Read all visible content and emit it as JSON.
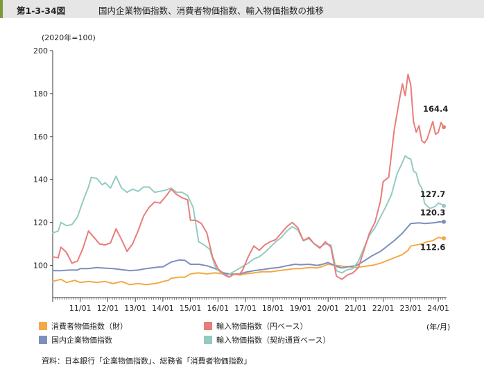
{
  "header": {
    "figure_number": "第1-3-34図",
    "title": "国内企業物価指数、消費者物価指数、輸入物価指数の推移"
  },
  "unit_label": "(2020年=100)",
  "x_unit_label": "(年/月)",
  "source": "資料：日本銀行「企業物価指数」、総務省「消費者物価指数」",
  "colors": {
    "cpi": "#f4a947",
    "import_yen": "#e87d7a",
    "cgpi": "#7c8fbd",
    "import_contract": "#93cbc1"
  },
  "chart_data": {
    "type": "line",
    "title": "国内企業物価指数、消費者物価指数、輸入物価指数の推移",
    "xlabel": "(年/月)",
    "ylabel": "(2020年=100)",
    "ylim": [
      85,
      200
    ],
    "yticks": [
      100,
      120,
      140,
      160,
      180,
      200
    ],
    "xlim": [
      2010.0,
      2024.3
    ],
    "xticks": [
      {
        "label": "11/01",
        "x": 2011.0
      },
      {
        "label": "12/01",
        "x": 2012.0
      },
      {
        "label": "13/01",
        "x": 2013.0
      },
      {
        "label": "14/01",
        "x": 2014.0
      },
      {
        "label": "15/01",
        "x": 2015.0
      },
      {
        "label": "16/01",
        "x": 2016.0
      },
      {
        "label": "17/01",
        "x": 2017.0
      },
      {
        "label": "18/01",
        "x": 2018.0
      },
      {
        "label": "19/01",
        "x": 2019.0
      },
      {
        "label": "20/01",
        "x": 2020.0
      },
      {
        "label": "21/01",
        "x": 2021.0
      },
      {
        "label": "22/01",
        "x": 2022.0
      },
      {
        "label": "23/01",
        "x": 2023.0
      },
      {
        "label": "24/01",
        "x": 2024.0
      }
    ],
    "legend_position": "bottom",
    "grid": false,
    "series": [
      {
        "key": "cpi",
        "name": "消費者物価指数（財）",
        "end_label": "112.6",
        "points": [
          [
            2010.0,
            92.5
          ],
          [
            2010.3,
            93.5
          ],
          [
            2010.5,
            92.0
          ],
          [
            2010.8,
            93.0
          ],
          [
            2011.0,
            92.0
          ],
          [
            2011.3,
            92.5
          ],
          [
            2011.6,
            92.0
          ],
          [
            2011.9,
            92.5
          ],
          [
            2012.2,
            91.5
          ],
          [
            2012.5,
            92.5
          ],
          [
            2012.8,
            91.0
          ],
          [
            2013.1,
            91.5
          ],
          [
            2013.4,
            91.0
          ],
          [
            2013.7,
            91.5
          ],
          [
            2013.9,
            92.0
          ],
          [
            2014.0,
            92.5
          ],
          [
            2014.2,
            93.0
          ],
          [
            2014.3,
            94.0
          ],
          [
            2014.6,
            94.5
          ],
          [
            2014.8,
            94.5
          ],
          [
            2015.0,
            96.0
          ],
          [
            2015.3,
            96.5
          ],
          [
            2015.6,
            96.0
          ],
          [
            2015.9,
            96.5
          ],
          [
            2016.2,
            96.0
          ],
          [
            2016.5,
            96.0
          ],
          [
            2016.8,
            95.5
          ],
          [
            2017.0,
            96.0
          ],
          [
            2017.3,
            96.5
          ],
          [
            2017.6,
            97.0
          ],
          [
            2017.9,
            97.0
          ],
          [
            2018.2,
            97.5
          ],
          [
            2018.5,
            98.0
          ],
          [
            2018.8,
            98.5
          ],
          [
            2019.0,
            98.5
          ],
          [
            2019.3,
            99.0
          ],
          [
            2019.6,
            98.8
          ],
          [
            2019.8,
            99.5
          ],
          [
            2020.0,
            100.5
          ],
          [
            2020.3,
            100.0
          ],
          [
            2020.6,
            99.5
          ],
          [
            2020.8,
            99.3
          ],
          [
            2021.0,
            99.0
          ],
          [
            2021.3,
            99.5
          ],
          [
            2021.6,
            100.0
          ],
          [
            2021.9,
            101.0
          ],
          [
            2022.1,
            102.0
          ],
          [
            2022.4,
            103.5
          ],
          [
            2022.7,
            105.0
          ],
          [
            2022.9,
            107.0
          ],
          [
            2023.0,
            109.0
          ],
          [
            2023.2,
            109.5
          ],
          [
            2023.4,
            110.0
          ],
          [
            2023.6,
            111.0
          ],
          [
            2023.8,
            111.5
          ],
          [
            2024.0,
            113.0
          ],
          [
            2024.2,
            112.6
          ]
        ]
      },
      {
        "key": "cgpi",
        "name": "国内企業物価指数",
        "end_label": "120.3",
        "points": [
          [
            2010.0,
            97.5
          ],
          [
            2010.3,
            97.5
          ],
          [
            2010.6,
            97.8
          ],
          [
            2010.9,
            97.8
          ],
          [
            2011.0,
            98.5
          ],
          [
            2011.3,
            98.5
          ],
          [
            2011.6,
            99.0
          ],
          [
            2011.9,
            98.7
          ],
          [
            2012.2,
            98.5
          ],
          [
            2012.5,
            98.0
          ],
          [
            2012.8,
            97.5
          ],
          [
            2013.1,
            97.8
          ],
          [
            2013.4,
            98.5
          ],
          [
            2013.7,
            99.0
          ],
          [
            2013.9,
            99.3
          ],
          [
            2014.0,
            99.3
          ],
          [
            2014.3,
            101.5
          ],
          [
            2014.6,
            102.5
          ],
          [
            2014.8,
            102.3
          ],
          [
            2015.0,
            100.5
          ],
          [
            2015.3,
            100.5
          ],
          [
            2015.6,
            99.8
          ],
          [
            2015.9,
            98.5
          ],
          [
            2016.2,
            96.5
          ],
          [
            2016.5,
            95.8
          ],
          [
            2016.8,
            96.0
          ],
          [
            2017.0,
            96.8
          ],
          [
            2017.3,
            97.5
          ],
          [
            2017.6,
            98.0
          ],
          [
            2017.9,
            98.6
          ],
          [
            2018.2,
            99.0
          ],
          [
            2018.5,
            99.8
          ],
          [
            2018.8,
            100.5
          ],
          [
            2019.0,
            100.3
          ],
          [
            2019.3,
            100.5
          ],
          [
            2019.6,
            100.0
          ],
          [
            2019.8,
            100.5
          ],
          [
            2020.0,
            101.3
          ],
          [
            2020.3,
            99.5
          ],
          [
            2020.5,
            98.8
          ],
          [
            2020.8,
            99.5
          ],
          [
            2021.0,
            99.8
          ],
          [
            2021.3,
            102.0
          ],
          [
            2021.6,
            104.5
          ],
          [
            2021.9,
            106.5
          ],
          [
            2022.1,
            108.5
          ],
          [
            2022.4,
            111.5
          ],
          [
            2022.7,
            115.0
          ],
          [
            2022.9,
            118.0
          ],
          [
            2023.0,
            119.5
          ],
          [
            2023.3,
            119.8
          ],
          [
            2023.5,
            119.5
          ],
          [
            2023.7,
            119.7
          ],
          [
            2023.9,
            119.9
          ],
          [
            2024.0,
            120.2
          ],
          [
            2024.2,
            120.3
          ]
        ]
      },
      {
        "key": "import_yen",
        "name": "輸入物価指数（円ベース）",
        "end_label": "164.4",
        "points": [
          [
            2010.0,
            104.0
          ],
          [
            2010.2,
            103.5
          ],
          [
            2010.3,
            108.5
          ],
          [
            2010.5,
            106.0
          ],
          [
            2010.7,
            101.0
          ],
          [
            2010.9,
            102.0
          ],
          [
            2011.1,
            108.0
          ],
          [
            2011.3,
            116.0
          ],
          [
            2011.5,
            113.0
          ],
          [
            2011.7,
            110.0
          ],
          [
            2011.9,
            109.5
          ],
          [
            2012.1,
            110.5
          ],
          [
            2012.3,
            117.0
          ],
          [
            2012.5,
            112.0
          ],
          [
            2012.7,
            106.5
          ],
          [
            2012.9,
            110.0
          ],
          [
            2013.1,
            116.0
          ],
          [
            2013.3,
            123.0
          ],
          [
            2013.5,
            127.0
          ],
          [
            2013.7,
            129.5
          ],
          [
            2013.9,
            129.0
          ],
          [
            2014.1,
            132.0
          ],
          [
            2014.3,
            135.5
          ],
          [
            2014.5,
            133.0
          ],
          [
            2014.7,
            131.5
          ],
          [
            2014.9,
            130.5
          ],
          [
            2015.0,
            121.0
          ],
          [
            2015.2,
            121.0
          ],
          [
            2015.4,
            119.5
          ],
          [
            2015.6,
            115.0
          ],
          [
            2015.8,
            104.0
          ],
          [
            2016.0,
            98.5
          ],
          [
            2016.2,
            96.0
          ],
          [
            2016.4,
            94.5
          ],
          [
            2016.6,
            96.0
          ],
          [
            2016.8,
            96.0
          ],
          [
            2016.9,
            98.0
          ],
          [
            2017.1,
            104.0
          ],
          [
            2017.3,
            109.0
          ],
          [
            2017.5,
            107.0
          ],
          [
            2017.7,
            109.5
          ],
          [
            2017.9,
            111.0
          ],
          [
            2018.1,
            112.0
          ],
          [
            2018.3,
            115.0
          ],
          [
            2018.5,
            118.0
          ],
          [
            2018.7,
            120.0
          ],
          [
            2018.9,
            117.5
          ],
          [
            2019.1,
            111.5
          ],
          [
            2019.3,
            113.0
          ],
          [
            2019.5,
            110.0
          ],
          [
            2019.7,
            108.0
          ],
          [
            2019.9,
            111.0
          ],
          [
            2020.1,
            108.5
          ],
          [
            2020.3,
            95.0
          ],
          [
            2020.5,
            93.5
          ],
          [
            2020.7,
            95.5
          ],
          [
            2020.9,
            96.5
          ],
          [
            2021.1,
            99.0
          ],
          [
            2021.3,
            107.0
          ],
          [
            2021.5,
            115.0
          ],
          [
            2021.7,
            120.0
          ],
          [
            2021.9,
            130.0
          ],
          [
            2022.0,
            139.0
          ],
          [
            2022.2,
            141.0
          ],
          [
            2022.4,
            163.0
          ],
          [
            2022.6,
            178.0
          ],
          [
            2022.7,
            184.5
          ],
          [
            2022.8,
            179.0
          ],
          [
            2022.9,
            189.0
          ],
          [
            2023.0,
            184.0
          ],
          [
            2023.1,
            167.0
          ],
          [
            2023.2,
            162.0
          ],
          [
            2023.3,
            165.0
          ],
          [
            2023.4,
            158.0
          ],
          [
            2023.5,
            157.0
          ],
          [
            2023.6,
            159.0
          ],
          [
            2023.7,
            163.0
          ],
          [
            2023.8,
            167.0
          ],
          [
            2023.9,
            161.0
          ],
          [
            2024.0,
            162.0
          ],
          [
            2024.1,
            166.5
          ],
          [
            2024.2,
            164.4
          ]
        ]
      },
      {
        "key": "import_contract",
        "name": "輸入物価指数（契約通貨ベース）",
        "end_label": "127.7",
        "points": [
          [
            2010.0,
            115.0
          ],
          [
            2010.2,
            116.0
          ],
          [
            2010.3,
            120.0
          ],
          [
            2010.5,
            118.5
          ],
          [
            2010.7,
            119.0
          ],
          [
            2010.9,
            122.5
          ],
          [
            2011.1,
            130.0
          ],
          [
            2011.3,
            136.5
          ],
          [
            2011.4,
            141.0
          ],
          [
            2011.6,
            140.5
          ],
          [
            2011.8,
            137.5
          ],
          [
            2011.9,
            138.5
          ],
          [
            2012.1,
            136.0
          ],
          [
            2012.3,
            141.5
          ],
          [
            2012.5,
            136.0
          ],
          [
            2012.7,
            134.0
          ],
          [
            2012.9,
            135.5
          ],
          [
            2013.1,
            134.5
          ],
          [
            2013.3,
            136.5
          ],
          [
            2013.5,
            136.5
          ],
          [
            2013.7,
            134.0
          ],
          [
            2013.9,
            134.5
          ],
          [
            2014.1,
            135.0
          ],
          [
            2014.3,
            136.0
          ],
          [
            2014.5,
            134.0
          ],
          [
            2014.7,
            134.0
          ],
          [
            2014.9,
            132.5
          ],
          [
            2015.1,
            127.0
          ],
          [
            2015.3,
            111.0
          ],
          [
            2015.5,
            109.5
          ],
          [
            2015.7,
            107.5
          ],
          [
            2015.9,
            99.5
          ],
          [
            2016.1,
            96.5
          ],
          [
            2016.3,
            95.0
          ],
          [
            2016.5,
            96.5
          ],
          [
            2016.7,
            98.0
          ],
          [
            2016.9,
            99.5
          ],
          [
            2017.1,
            101.0
          ],
          [
            2017.3,
            103.0
          ],
          [
            2017.5,
            104.0
          ],
          [
            2017.7,
            106.0
          ],
          [
            2017.9,
            108.5
          ],
          [
            2018.1,
            111.0
          ],
          [
            2018.3,
            113.0
          ],
          [
            2018.5,
            116.0
          ],
          [
            2018.7,
            118.0
          ],
          [
            2018.9,
            116.5
          ],
          [
            2019.1,
            111.5
          ],
          [
            2019.3,
            112.5
          ],
          [
            2019.5,
            110.0
          ],
          [
            2019.7,
            108.5
          ],
          [
            2019.9,
            110.0
          ],
          [
            2020.1,
            109.5
          ],
          [
            2020.3,
            97.5
          ],
          [
            2020.5,
            96.5
          ],
          [
            2020.7,
            98.0
          ],
          [
            2020.9,
            98.5
          ],
          [
            2021.1,
            102.0
          ],
          [
            2021.3,
            108.0
          ],
          [
            2021.5,
            114.0
          ],
          [
            2021.7,
            117.5
          ],
          [
            2021.9,
            122.5
          ],
          [
            2022.1,
            127.5
          ],
          [
            2022.3,
            133.0
          ],
          [
            2022.5,
            142.5
          ],
          [
            2022.7,
            148.0
          ],
          [
            2022.8,
            151.0
          ],
          [
            2022.9,
            150.0
          ],
          [
            2023.0,
            149.5
          ],
          [
            2023.1,
            144.0
          ],
          [
            2023.2,
            143.0
          ],
          [
            2023.3,
            138.0
          ],
          [
            2023.4,
            136.0
          ],
          [
            2023.5,
            129.0
          ],
          [
            2023.6,
            127.5
          ],
          [
            2023.7,
            126.5
          ],
          [
            2023.8,
            127.0
          ],
          [
            2023.9,
            127.5
          ],
          [
            2024.0,
            129.0
          ],
          [
            2024.1,
            128.5
          ],
          [
            2024.2,
            127.7
          ]
        ]
      }
    ]
  }
}
